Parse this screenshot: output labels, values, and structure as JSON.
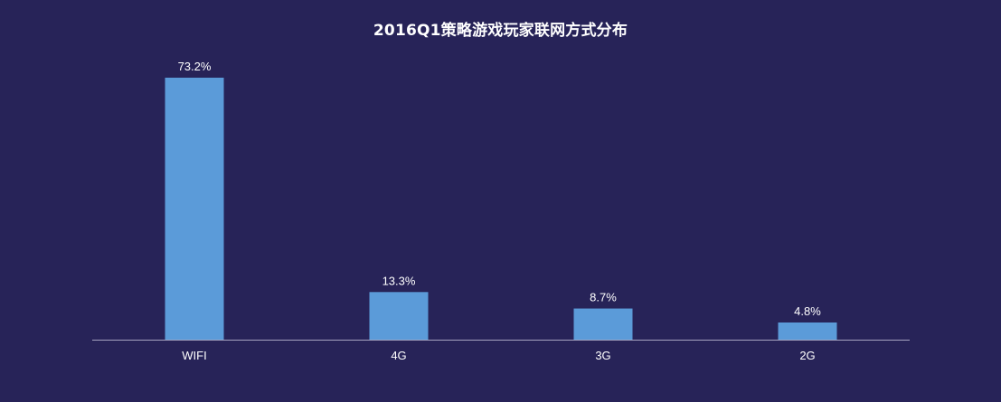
{
  "chart_data": {
    "type": "bar",
    "title": "2016Q1策略游戏玩家联网方式分布",
    "categories": [
      "WIFI",
      "4G",
      "3G",
      "2G"
    ],
    "values": [
      73.2,
      13.3,
      8.7,
      4.8
    ],
    "value_labels": [
      "73.2%",
      "13.3%",
      "8.7%",
      "4.8%"
    ],
    "unit": "%",
    "ylim": [
      0,
      73.2
    ],
    "grid": false,
    "legend": "none",
    "colors": {
      "background": "#272358",
      "bar": "#5b9bd9",
      "axis": "#a5a3c0",
      "text": "#ffffff"
    }
  }
}
